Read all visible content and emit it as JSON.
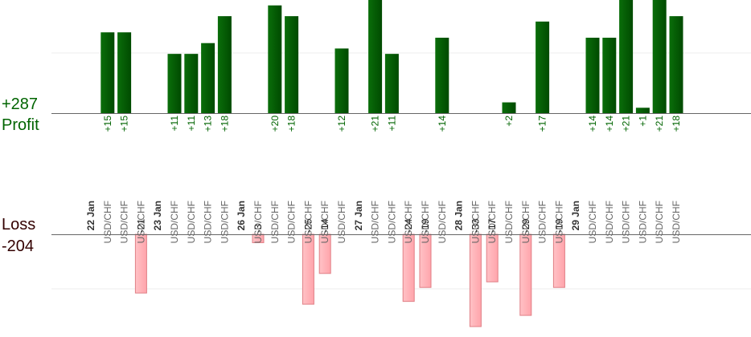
{
  "summary": {
    "profit_total": "+287",
    "profit_label": "Profit",
    "loss_label": "Loss",
    "loss_total": "-204"
  },
  "colors": {
    "profit_bar": "#006400",
    "profit_bar_dark": "#003f00",
    "loss_bar": "#ffb3b8",
    "loss_bar_edge": "#e07f86",
    "profit_text": "#006400",
    "loss_text": "#222222",
    "date_text": "#333333",
    "instrument_text": "#666666"
  },
  "chart_data": {
    "type": "bar",
    "profit_max": 21,
    "loss_max": 33,
    "columns": [
      {
        "kind": "date",
        "label": "22 Jan"
      },
      {
        "kind": "trade",
        "instrument": "USD/CHF",
        "value": 15
      },
      {
        "kind": "trade",
        "instrument": "USD/CHF",
        "value": 15
      },
      {
        "kind": "trade",
        "instrument": "USD/CHF",
        "value": -21
      },
      {
        "kind": "date",
        "label": "23 Jan"
      },
      {
        "kind": "trade",
        "instrument": "USD/CHF",
        "value": 11
      },
      {
        "kind": "trade",
        "instrument": "USD/CHF",
        "value": 11
      },
      {
        "kind": "trade",
        "instrument": "USD/CHF",
        "value": 13
      },
      {
        "kind": "trade",
        "instrument": "USD/CHF",
        "value": 18
      },
      {
        "kind": "date",
        "label": "26 Jan"
      },
      {
        "kind": "trade",
        "instrument": "USD/CHF",
        "value": -3
      },
      {
        "kind": "trade",
        "instrument": "USD/CHF",
        "value": 20
      },
      {
        "kind": "trade",
        "instrument": "USD/CHF",
        "value": 18
      },
      {
        "kind": "trade",
        "instrument": "USD/CHF",
        "value": -25
      },
      {
        "kind": "trade",
        "instrument": "USD/CHF",
        "value": -14
      },
      {
        "kind": "trade",
        "instrument": "USD/CHF",
        "value": 12
      },
      {
        "kind": "date",
        "label": "27 Jan"
      },
      {
        "kind": "trade",
        "instrument": "USD/CHF",
        "value": 21
      },
      {
        "kind": "trade",
        "instrument": "USD/CHF",
        "value": 11
      },
      {
        "kind": "trade",
        "instrument": "USD/CHF",
        "value": -24
      },
      {
        "kind": "trade",
        "instrument": "USD/CHF",
        "value": -19
      },
      {
        "kind": "trade",
        "instrument": "USD/CHF",
        "value": 14
      },
      {
        "kind": "date",
        "label": "28 Jan"
      },
      {
        "kind": "trade",
        "instrument": "USD/CHF",
        "value": -33
      },
      {
        "kind": "trade",
        "instrument": "USD/CHF",
        "value": -17
      },
      {
        "kind": "trade",
        "instrument": "USD/CHF",
        "value": 2
      },
      {
        "kind": "trade",
        "instrument": "USD/CHF",
        "value": -29
      },
      {
        "kind": "trade",
        "instrument": "USD/CHF",
        "value": 17
      },
      {
        "kind": "trade",
        "instrument": "USD/CHF",
        "value": -19
      },
      {
        "kind": "date",
        "label": "29 Jan"
      },
      {
        "kind": "trade",
        "instrument": "USD/CHF",
        "value": 14
      },
      {
        "kind": "trade",
        "instrument": "USD/CHF",
        "value": 14
      },
      {
        "kind": "trade",
        "instrument": "USD/CHF",
        "value": 21
      },
      {
        "kind": "trade",
        "instrument": "USD/CHF",
        "value": 1
      },
      {
        "kind": "trade",
        "instrument": "USD/CHF",
        "value": 21
      },
      {
        "kind": "trade",
        "instrument": "USD/CHF",
        "value": 18
      }
    ]
  }
}
